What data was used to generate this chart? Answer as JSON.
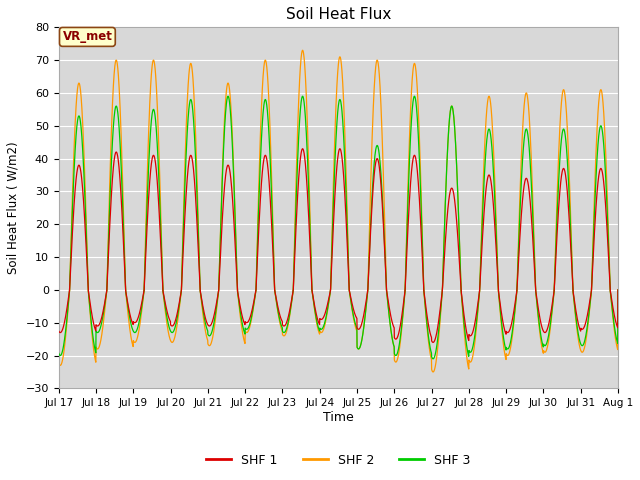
{
  "title": "Soil Heat Flux",
  "ylabel": "Soil Heat Flux ( W/m2)",
  "xlabel": "Time",
  "ylim": [
    -30,
    80
  ],
  "yticks": [
    -30,
    -20,
    -10,
    0,
    10,
    20,
    30,
    40,
    50,
    60,
    70,
    80
  ],
  "fig_bg_color": "#ffffff",
  "plot_bg_color": "#d8d8d8",
  "grid_color": "#ffffff",
  "line_colors": {
    "SHF 1": "#dd0000",
    "SHF 2": "#ff9900",
    "SHF 3": "#00cc00"
  },
  "annotation_text": "VR_met",
  "legend_labels": [
    "SHF 1",
    "SHF 2",
    "SHF 3"
  ],
  "num_days": 15,
  "num_points": 3000,
  "shf1_day_amps": [
    38,
    42,
    41,
    41,
    38,
    41,
    43,
    43,
    40,
    41,
    31,
    35,
    34,
    37,
    37
  ],
  "shf2_day_amps": [
    63,
    70,
    70,
    69,
    63,
    70,
    73,
    71,
    70,
    69,
    56,
    59,
    60,
    61,
    61
  ],
  "shf3_day_amps": [
    53,
    56,
    55,
    58,
    59,
    58,
    59,
    58,
    44,
    59,
    56,
    49,
    49,
    49,
    50
  ],
  "shf1_night_amps": [
    -13,
    -11,
    -10,
    -11,
    -11,
    -10,
    -11,
    -9,
    -12,
    -15,
    -16,
    -14,
    -13,
    -13,
    -12
  ],
  "shf2_night_amps": [
    -23,
    -18,
    -16,
    -16,
    -17,
    -13,
    -14,
    -13,
    -18,
    -22,
    -25,
    -22,
    -20,
    -19,
    -19
  ],
  "shf3_night_amps": [
    -20,
    -13,
    -13,
    -13,
    -14,
    -12,
    -13,
    -12,
    -18,
    -20,
    -21,
    -19,
    -18,
    -17,
    -17
  ]
}
